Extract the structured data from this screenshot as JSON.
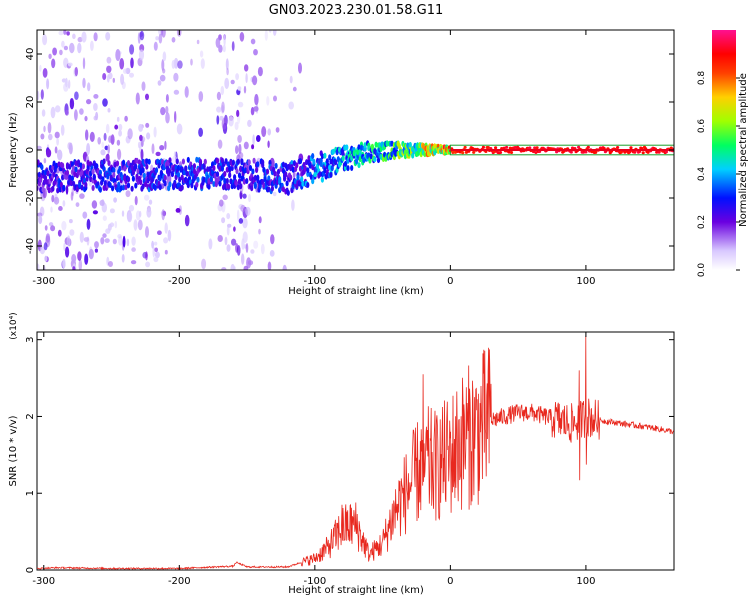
{
  "title": "GN03.2023.230.01.58.G11",
  "chart_data": [
    {
      "type": "heatmap",
      "xlabel": "Height of straight line (km)",
      "ylabel": "Frequency (Hz)",
      "xlim": [
        -305,
        165
      ],
      "ylim": [
        -50,
        50
      ],
      "xticks": [
        -300,
        -200,
        -100,
        0,
        100
      ],
      "yticks": [
        -40,
        -20,
        0,
        20,
        40
      ],
      "colorbar": {
        "label": "Normalized spectral amplitude",
        "range": [
          0,
          1
        ],
        "ticks": [
          "0.0",
          "0.2",
          "0.4",
          "0.6",
          "0.8"
        ],
        "colormap": "white-purple-blue-cyan-green-yellow-red-magenta"
      },
      "trace": {
        "description_points_x": [
          -300,
          -180,
          -150,
          -120,
          -100,
          -80,
          -60,
          -40,
          -20,
          0,
          50,
          100,
          165
        ],
        "center_freq_y": [
          -11,
          -10,
          -10,
          -12,
          -8,
          -4,
          -1,
          0,
          0,
          0,
          0,
          0,
          0
        ],
        "peak_amplitude": [
          0.3,
          0.35,
          0.3,
          0.35,
          0.4,
          0.45,
          0.5,
          0.6,
          0.75,
          0.9,
          0.95,
          0.95,
          0.95
        ]
      },
      "colors": {
        "carrier_line": "#e8001c",
        "noise": "#7a1fd8"
      }
    },
    {
      "type": "line",
      "xlabel": "Height of straight line (km)",
      "ylabel": "SNR (10 * v/v)",
      "scale_label": "(x10⁴)",
      "xlim": [
        -305,
        165
      ],
      "ylim": [
        0,
        3.1
      ],
      "xticks": [
        -300,
        -200,
        -100,
        0,
        100
      ],
      "yticks": [
        0,
        1,
        2,
        3
      ],
      "series": [
        {
          "color": "#e8281e",
          "x": [
            -305,
            -290,
            -250,
            -200,
            -160,
            -158,
            -150,
            -120,
            -110,
            -100,
            -90,
            -80,
            -70,
            -60,
            -50,
            -40,
            -30,
            -20,
            -10,
            0,
            10,
            20,
            30,
            40,
            50,
            60,
            70,
            80,
            90,
            100,
            110,
            130,
            150,
            165
          ],
          "y": [
            0.02,
            0.03,
            0.02,
            0.02,
            0.05,
            0.1,
            0.04,
            0.04,
            0.1,
            0.15,
            0.3,
            0.55,
            0.6,
            0.2,
            0.35,
            0.8,
            1.1,
            1.4,
            1.35,
            1.5,
            1.7,
            1.8,
            1.95,
            2.0,
            2.05,
            2.05,
            2.0,
            1.95,
            1.9,
            2.0,
            1.95,
            1.9,
            1.85,
            1.8
          ],
          "spikes": [
            {
              "x": -20,
              "y": 2.55
            },
            {
              "x": 100,
              "y": 3.05
            },
            {
              "x": 95,
              "y": 2.6
            },
            {
              "x": -80,
              "y": 0.85
            }
          ]
        }
      ]
    }
  ]
}
